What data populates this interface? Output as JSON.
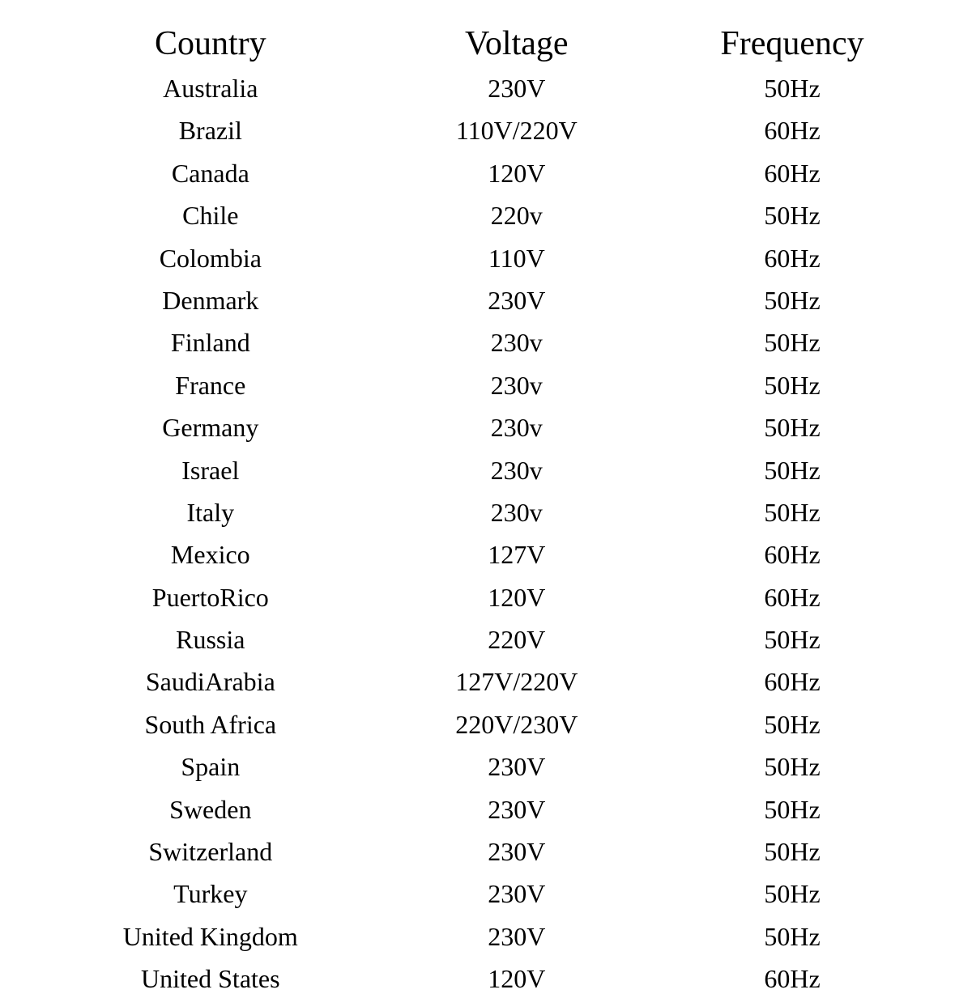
{
  "table": {
    "background_color": "#ffffff",
    "text_color": "#000000",
    "font_family": "Georgia, 'Times New Roman', serif",
    "header_fontsize": 42,
    "data_fontsize": 32,
    "columns": [
      {
        "key": "country",
        "label": "Country",
        "width_pct": 37
      },
      {
        "key": "voltage",
        "label": "Voltage",
        "width_pct": 33
      },
      {
        "key": "frequency",
        "label": "Frequency",
        "width_pct": 30
      }
    ],
    "rows": [
      {
        "country": "Australia",
        "voltage": "230V",
        "frequency": "50Hz"
      },
      {
        "country": "Brazil",
        "voltage": "110V/220V",
        "frequency": "60Hz"
      },
      {
        "country": "Canada",
        "voltage": "120V",
        "frequency": "60Hz"
      },
      {
        "country": "Chile",
        "voltage": "220v",
        "frequency": "50Hz"
      },
      {
        "country": "Colombia",
        "voltage": "110V",
        "frequency": "60Hz"
      },
      {
        "country": "Denmark",
        "voltage": "230V",
        "frequency": "50Hz"
      },
      {
        "country": "Finland",
        "voltage": "230v",
        "frequency": "50Hz"
      },
      {
        "country": "France",
        "voltage": "230v",
        "frequency": "50Hz"
      },
      {
        "country": "Germany",
        "voltage": "230v",
        "frequency": "50Hz"
      },
      {
        "country": "Israel",
        "voltage": "230v",
        "frequency": "50Hz"
      },
      {
        "country": "Italy",
        "voltage": "230v",
        "frequency": "50Hz"
      },
      {
        "country": "Mexico",
        "voltage": "127V",
        "frequency": "60Hz"
      },
      {
        "country": "PuertoRico",
        "voltage": "120V",
        "frequency": "60Hz"
      },
      {
        "country": "Russia",
        "voltage": "220V",
        "frequency": "50Hz"
      },
      {
        "country": "SaudiArabia",
        "voltage": "127V/220V",
        "frequency": "60Hz"
      },
      {
        "country": "South Africa",
        "voltage": "220V/230V",
        "frequency": "50Hz"
      },
      {
        "country": "Spain",
        "voltage": "230V",
        "frequency": "50Hz"
      },
      {
        "country": "Sweden",
        "voltage": "230V",
        "frequency": "50Hz"
      },
      {
        "country": "Switzerland",
        "voltage": "230V",
        "frequency": "50Hz"
      },
      {
        "country": "Turkey",
        "voltage": "230V",
        "frequency": "50Hz"
      },
      {
        "country": "United Kingdom",
        "voltage": "230V",
        "frequency": "50Hz"
      },
      {
        "country": "United States",
        "voltage": "120V",
        "frequency": "60Hz"
      }
    ]
  }
}
